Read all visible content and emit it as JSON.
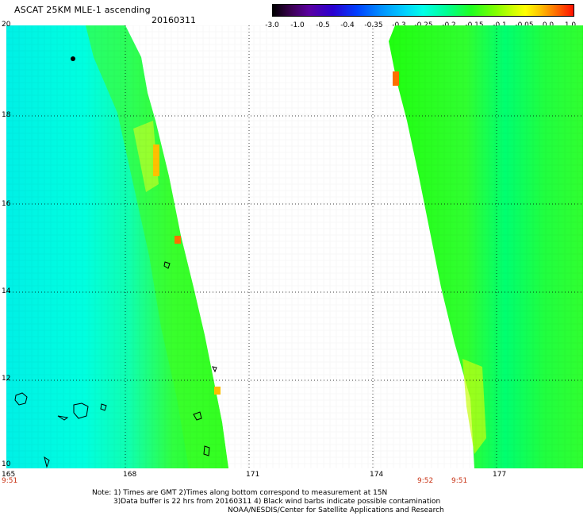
{
  "title": "ASCAT 25KM MLE-1 ascending",
  "date": "20160311",
  "colorbar": {
    "ticks": [
      "-3.0",
      "-1.0",
      "-0.5",
      "-0.4",
      "-0.35",
      "-0.3",
      "-0.25",
      "-0.2",
      "-0.15",
      "-0.1",
      "-0.05",
      "0.0",
      "1.0"
    ]
  },
  "map": {
    "lat_labels": [
      "20",
      "18",
      "16",
      "14",
      "12",
      "10"
    ],
    "lon_labels": [
      "165",
      "168",
      "171",
      "174",
      "177"
    ],
    "time_labels": {
      "left": "9:51",
      "mid": "9:52",
      "right": "9:51"
    }
  },
  "footer": {
    "line1": "Note: 1) Times are GMT 2)Times along bottom correspond to measurement at 15N",
    "line2": "3)Data buffer is 22 hrs from 20160311 4) Black wind barbs indicate possible contamination",
    "line3": "NOAA/NESDIS/Center for Satellite Applications and Research"
  }
}
